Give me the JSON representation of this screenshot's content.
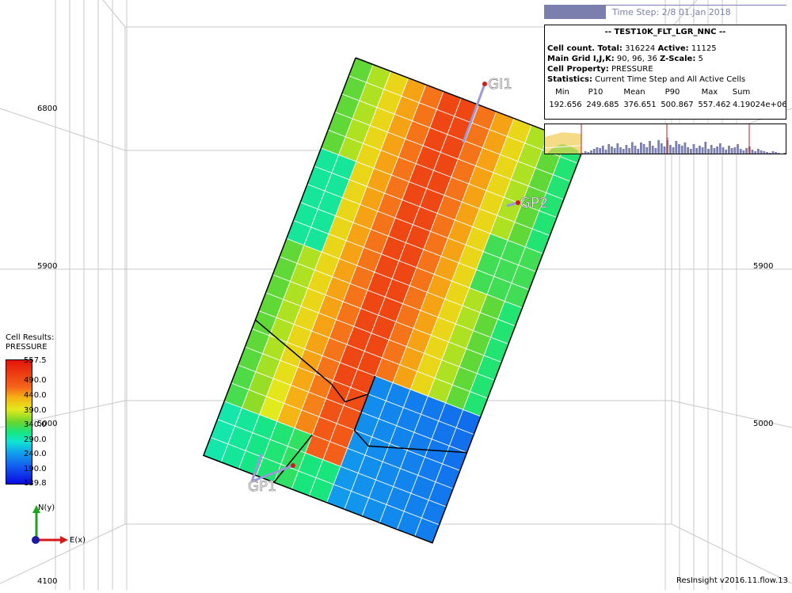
{
  "time_step": "Time Step: 2/8 01.Jan 2018",
  "info": {
    "title": "-- TEST10K_FLT_LGR_NNC --",
    "cell_count_label": "Cell count. Total:",
    "cell_count_total": "316224",
    "active_label": "Active:",
    "active_count": "11125",
    "main_grid_label": "Main Grid I,J,K:",
    "main_grid_value": "90, 96, 36",
    "zscale_label": "Z-Scale:",
    "zscale_value": "5",
    "cell_property_label": "Cell Property:",
    "cell_property_value": "PRESSURE",
    "statistics_label": "Statistics:",
    "statistics_value": "Current Time Step and All Active Cells",
    "stats_headers": [
      "Min",
      "P10",
      "Mean",
      "P90",
      "Max",
      "Sum"
    ],
    "stats_values": [
      "192.656",
      "249.685",
      "376.651",
      "500.867",
      "557.462",
      "4.19024e+06"
    ]
  },
  "axis_labels": {
    "left_6800": "6800",
    "left_5900": "5900",
    "left_5000": "5000",
    "left_4100": "4100",
    "right_5900": "5900",
    "right_5000": "5000"
  },
  "wells": [
    "GI1",
    "GP2",
    "GP1"
  ],
  "legend": {
    "title_line1": "Cell Results:",
    "title_line2": "PRESSURE",
    "ticks": [
      "557.5",
      "490.0",
      "440.0",
      "390.0",
      "340.0",
      "290.0",
      "240.0",
      "190.0",
      "139.8"
    ]
  },
  "axes_triad": {
    "north": "N(y)",
    "east": "E(x)"
  },
  "footer": "ResInsight v2016.11.flow.13",
  "colors": {
    "high": "#e4140a",
    "mid": "#e3ea1c",
    "low": "#0a0ae0",
    "time_bar": "#7a7fae"
  }
}
